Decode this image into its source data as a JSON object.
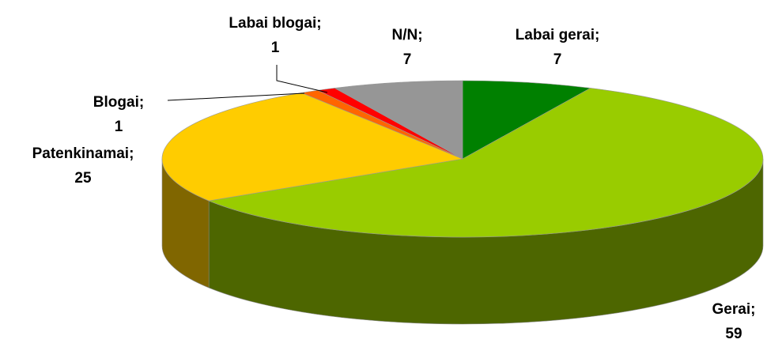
{
  "chart_data": {
    "type": "pie3d",
    "categories": [
      "Labai gerai;",
      "Gerai;",
      "Patenkinamai;",
      "Blogai;",
      "Labai blogai;",
      "N/N;"
    ],
    "values": [
      7,
      59,
      25,
      1,
      1,
      7
    ],
    "colors": [
      "#008000",
      "#99cc00",
      "#ffcc00",
      "#ff6600",
      "#ff0000",
      "#969696"
    ]
  }
}
